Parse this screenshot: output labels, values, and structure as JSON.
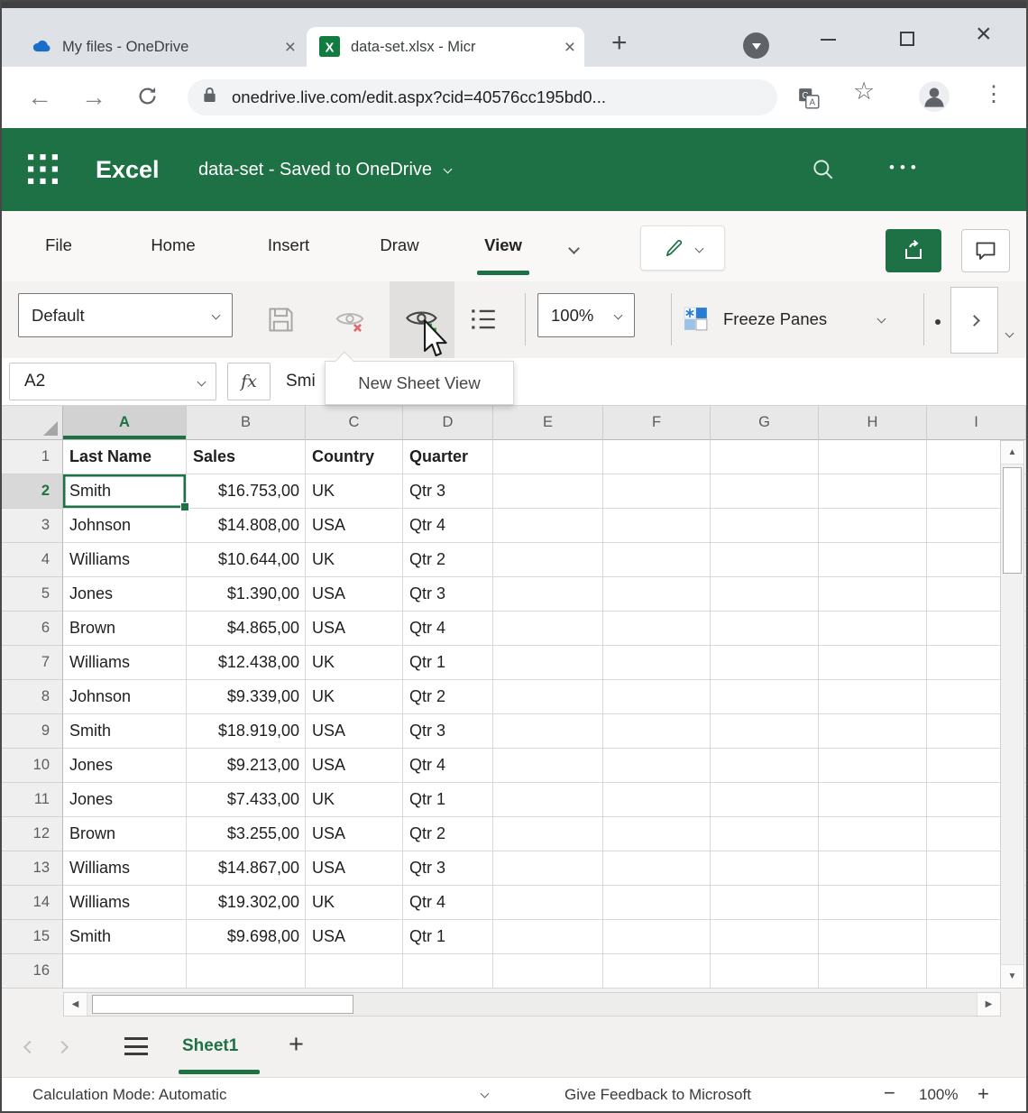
{
  "colors": {
    "accent_green": "#1e7145",
    "freeze_icon_blue": "#2b7cd3",
    "hide_x_red": "#e06a6a"
  },
  "glyphs": {
    "up": "▲",
    "down": "▼",
    "left": "◀",
    "right": "▶",
    "plus": "+",
    "minus": "−",
    "close": "×",
    "back": "←",
    "forward": "→",
    "star": "☆",
    "menu_dots": "⋮",
    "ellipsis": "•••"
  },
  "browser": {
    "tabs": [
      {
        "title": "My files - OneDrive",
        "active": false
      },
      {
        "title": "data-set.xlsx - Micr",
        "active": true
      }
    ],
    "url": "onedrive.live.com/edit.aspx?cid=40576cc195bd0..."
  },
  "app_header": {
    "app_name": "Excel",
    "document_title": "data-set  -  Saved to OneDrive"
  },
  "menu": {
    "items": [
      "File",
      "Home",
      "Insert",
      "Draw",
      "View"
    ],
    "active_item": "View"
  },
  "toolbar": {
    "sheet_view_value": "Default",
    "zoom_value": "100%",
    "freeze_panes_label": "Freeze Panes"
  },
  "formula_bar": {
    "name_box_value": "A2",
    "fx_label": "fx",
    "formula_value": "Smi"
  },
  "tooltip": {
    "text": "New Sheet View"
  },
  "sheet": {
    "columns": [
      "A",
      "B",
      "C",
      "D",
      "E",
      "F",
      "G",
      "H",
      "I"
    ],
    "selected_column": "A",
    "selected_row": 2,
    "selected_cell": "A2",
    "rows": [
      {
        "n": 1,
        "bold": true,
        "cells": [
          "Last Name",
          "Sales",
          "Country",
          "Quarter"
        ]
      },
      {
        "n": 2,
        "cells": [
          "Smith",
          "$16.753,00",
          "UK",
          "Qtr 3"
        ]
      },
      {
        "n": 3,
        "cells": [
          "Johnson",
          "$14.808,00",
          "USA",
          "Qtr 4"
        ]
      },
      {
        "n": 4,
        "cells": [
          "Williams",
          "$10.644,00",
          "UK",
          "Qtr 2"
        ]
      },
      {
        "n": 5,
        "cells": [
          "Jones",
          "$1.390,00",
          "USA",
          "Qtr 3"
        ]
      },
      {
        "n": 6,
        "cells": [
          "Brown",
          "$4.865,00",
          "USA",
          "Qtr 4"
        ]
      },
      {
        "n": 7,
        "cells": [
          "Williams",
          "$12.438,00",
          "UK",
          "Qtr 1"
        ]
      },
      {
        "n": 8,
        "cells": [
          "Johnson",
          "$9.339,00",
          "UK",
          "Qtr 2"
        ]
      },
      {
        "n": 9,
        "cells": [
          "Smith",
          "$18.919,00",
          "USA",
          "Qtr 3"
        ]
      },
      {
        "n": 10,
        "cells": [
          "Jones",
          "$9.213,00",
          "USA",
          "Qtr 4"
        ]
      },
      {
        "n": 11,
        "cells": [
          "Jones",
          "$7.433,00",
          "UK",
          "Qtr 1"
        ]
      },
      {
        "n": 12,
        "cells": [
          "Brown",
          "$3.255,00",
          "USA",
          "Qtr 2"
        ]
      },
      {
        "n": 13,
        "cells": [
          "Williams",
          "$14.867,00",
          "USA",
          "Qtr 3"
        ]
      },
      {
        "n": 14,
        "cells": [
          "Williams",
          "$19.302,00",
          "UK",
          "Qtr 4"
        ]
      },
      {
        "n": 15,
        "cells": [
          "Smith",
          "$9.698,00",
          "USA",
          "Qtr 1"
        ]
      },
      {
        "n": 16,
        "cells": [
          "",
          "",
          "",
          ""
        ]
      }
    ]
  },
  "sheet_tabs": {
    "active_sheet": "Sheet1"
  },
  "status_bar": {
    "calculation_mode": "Calculation Mode: Automatic",
    "feedback_label": "Give Feedback to Microsoft",
    "zoom_percent": "100%"
  }
}
